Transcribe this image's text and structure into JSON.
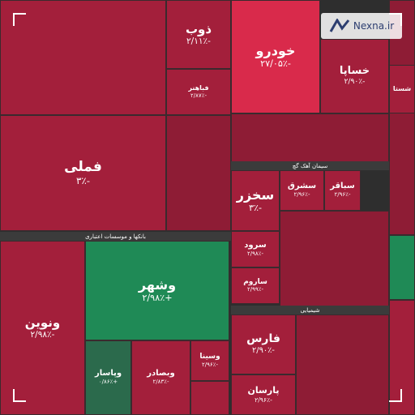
{
  "tiles": [
    {
      "name": "فملی",
      "change": "-۳٪",
      "color": "#a31f3b"
    },
    {
      "name": "ذوب",
      "change": "-۲/۱۱٪",
      "color": "#a31f3b"
    },
    {
      "name": "فباهنر",
      "change": "-۲/۸۷٪",
      "color": "#a31f3b"
    },
    {
      "name": "ونوین",
      "change": "-۲/۹۸٪",
      "color": "#a31f3b"
    },
    {
      "name": "وشهر",
      "change": "+۲/۹۸٪",
      "color": "#1f8a56"
    },
    {
      "name": "وپاسار",
      "change": "+۰/۸۶٪",
      "color": "#2b6a4c"
    },
    {
      "name": "وبصادر",
      "change": "-۲/۸۳٪",
      "color": "#a31f3b"
    },
    {
      "name": "وسینا",
      "change": "-۲/۹۶٪",
      "color": "#a31f3b"
    },
    {
      "name": "خودرو",
      "change": "-۲۷/۰۵٪",
      "color": "#d92a4b"
    },
    {
      "name": "خساپا",
      "change": "-۲/۹۰٪",
      "color": "#a31f3b"
    },
    {
      "name": "سخزر",
      "change": "-۳٪",
      "color": "#a31f3b"
    },
    {
      "name": "سشرق",
      "change": "-۲/۹۶٪",
      "color": "#a31f3b"
    },
    {
      "name": "سباقر",
      "change": "-۲/۹۶٪",
      "color": "#a31f3b"
    },
    {
      "name": "سرود",
      "change": "-۲/۹۸٪",
      "color": "#a31f3b"
    },
    {
      "name": "ساروم",
      "change": "-۲/۹۹٪",
      "color": "#a31f3b"
    },
    {
      "name": "فارس",
      "change": "-۲/۹۰٪",
      "color": "#a31f3b"
    },
    {
      "name": "پارسان",
      "change": "-۲/۹۶٪",
      "color": "#a31f3b"
    },
    {
      "name": "شستا",
      "change": "",
      "color": "#a31f3b"
    }
  ],
  "sections": [
    "بانکها و موسسات اعتباری",
    "سیمان آهک گچ",
    "شیمیایی"
  ],
  "logo": "Nexna.ir"
}
